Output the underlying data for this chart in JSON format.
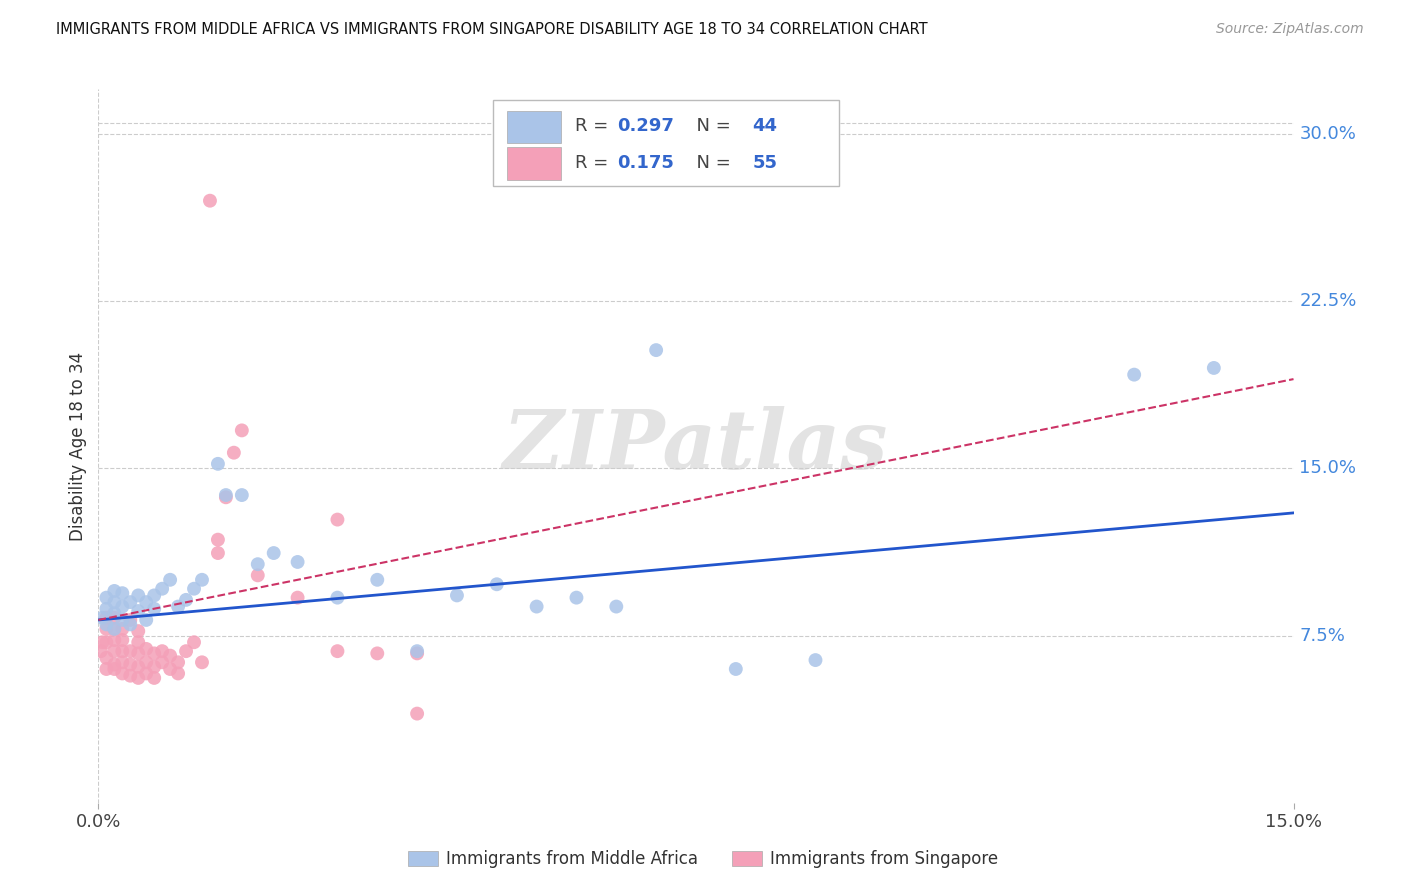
{
  "title": "IMMIGRANTS FROM MIDDLE AFRICA VS IMMIGRANTS FROM SINGAPORE DISABILITY AGE 18 TO 34 CORRELATION CHART",
  "source": "Source: ZipAtlas.com",
  "ylabel": "Disability Age 18 to 34",
  "ytick_labels": [
    "7.5%",
    "15.0%",
    "22.5%",
    "30.0%"
  ],
  "ytick_values": [
    0.075,
    0.15,
    0.225,
    0.3
  ],
  "xlim": [
    0.0,
    0.15
  ],
  "ylim": [
    0.0,
    0.32
  ],
  "blue_color": "#aac4e8",
  "pink_color": "#f4a0b8",
  "blue_line_color": "#2255cc",
  "pink_line_color": "#cc3366",
  "watermark": "ZIPatlas",
  "blue_R": 0.297,
  "blue_N": 44,
  "pink_R": 0.175,
  "pink_N": 55,
  "blue_x": [
    0.0005,
    0.001,
    0.001,
    0.001,
    0.002,
    0.002,
    0.002,
    0.002,
    0.003,
    0.003,
    0.003,
    0.004,
    0.004,
    0.005,
    0.005,
    0.006,
    0.006,
    0.007,
    0.007,
    0.008,
    0.009,
    0.01,
    0.011,
    0.012,
    0.013,
    0.015,
    0.016,
    0.018,
    0.02,
    0.022,
    0.025,
    0.03,
    0.035,
    0.04,
    0.045,
    0.05,
    0.055,
    0.06,
    0.07,
    0.08,
    0.065,
    0.09,
    0.13,
    0.14
  ],
  "blue_y": [
    0.083,
    0.08,
    0.087,
    0.092,
    0.078,
    0.085,
    0.09,
    0.095,
    0.082,
    0.088,
    0.094,
    0.08,
    0.09,
    0.086,
    0.093,
    0.082,
    0.09,
    0.087,
    0.093,
    0.096,
    0.1,
    0.088,
    0.091,
    0.096,
    0.1,
    0.152,
    0.138,
    0.138,
    0.107,
    0.112,
    0.108,
    0.092,
    0.1,
    0.068,
    0.093,
    0.098,
    0.088,
    0.092,
    0.203,
    0.06,
    0.088,
    0.064,
    0.192,
    0.195
  ],
  "pink_x": [
    0.0003,
    0.0005,
    0.001,
    0.001,
    0.001,
    0.001,
    0.001,
    0.002,
    0.002,
    0.002,
    0.002,
    0.002,
    0.002,
    0.003,
    0.003,
    0.003,
    0.003,
    0.003,
    0.004,
    0.004,
    0.004,
    0.004,
    0.005,
    0.005,
    0.005,
    0.005,
    0.005,
    0.006,
    0.006,
    0.006,
    0.007,
    0.007,
    0.007,
    0.008,
    0.008,
    0.009,
    0.009,
    0.01,
    0.01,
    0.011,
    0.012,
    0.013,
    0.015,
    0.015,
    0.016,
    0.017,
    0.018,
    0.02,
    0.025,
    0.03,
    0.03,
    0.035,
    0.04,
    0.04,
    0.014
  ],
  "pink_y": [
    0.068,
    0.072,
    0.065,
    0.072,
    0.078,
    0.083,
    0.06,
    0.062,
    0.068,
    0.073,
    0.078,
    0.083,
    0.06,
    0.058,
    0.063,
    0.068,
    0.073,
    0.078,
    0.057,
    0.062,
    0.068,
    0.082,
    0.056,
    0.061,
    0.067,
    0.072,
    0.077,
    0.058,
    0.063,
    0.069,
    0.056,
    0.061,
    0.067,
    0.063,
    0.068,
    0.06,
    0.066,
    0.058,
    0.063,
    0.068,
    0.072,
    0.063,
    0.112,
    0.118,
    0.137,
    0.157,
    0.167,
    0.102,
    0.092,
    0.068,
    0.127,
    0.067,
    0.04,
    0.067,
    0.27
  ],
  "blue_trend_x": [
    0.0,
    0.15
  ],
  "blue_trend_y": [
    0.082,
    0.13
  ],
  "pink_trend_x": [
    0.0,
    0.15
  ],
  "pink_trend_y": [
    0.082,
    0.19
  ]
}
